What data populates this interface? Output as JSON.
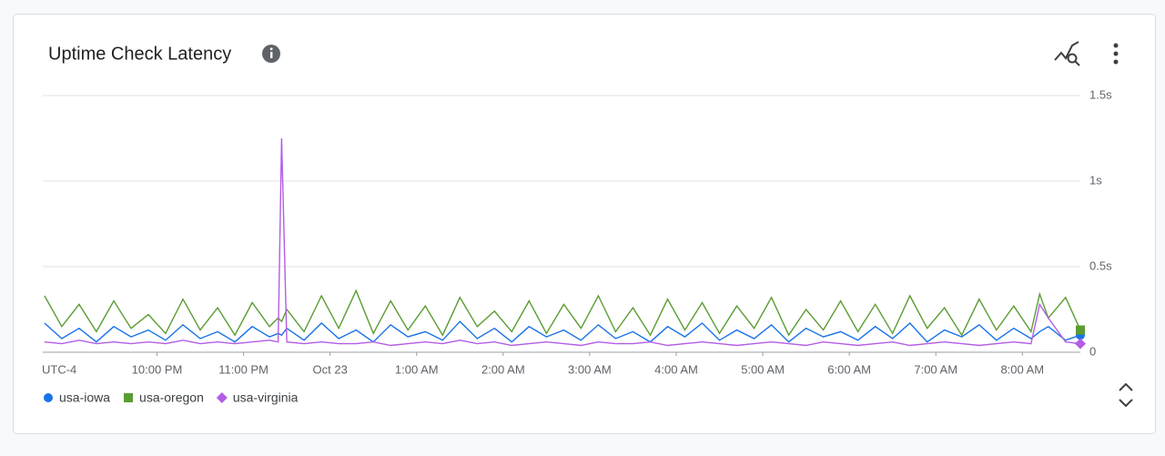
{
  "chart_data": {
    "type": "line",
    "title": "Uptime Check Latency",
    "timezone": "UTC-4",
    "x": [
      20.7,
      20.9,
      21.1,
      21.3,
      21.5,
      21.7,
      21.9,
      22.1,
      22.3,
      22.5,
      22.7,
      22.9,
      23.1,
      23.3,
      23.4,
      23.44,
      23.5,
      23.7,
      23.9,
      24.1,
      24.3,
      24.5,
      24.7,
      24.9,
      25.1,
      25.3,
      25.5,
      25.7,
      25.9,
      26.1,
      26.3,
      26.5,
      26.7,
      26.9,
      27.1,
      27.3,
      27.5,
      27.7,
      27.9,
      28.1,
      28.3,
      28.5,
      28.7,
      28.9,
      29.1,
      29.3,
      29.5,
      29.7,
      29.9,
      30.1,
      30.3,
      30.5,
      30.7,
      30.9,
      31.1,
      31.3,
      31.5,
      31.7,
      31.9,
      32.1,
      32.2,
      32.3,
      32.5,
      32.67
    ],
    "series": [
      {
        "name": "usa-iowa",
        "color": "#1a73e8",
        "marker": "circle",
        "values": [
          0.17,
          0.08,
          0.14,
          0.06,
          0.15,
          0.09,
          0.13,
          0.07,
          0.16,
          0.08,
          0.12,
          0.06,
          0.15,
          0.09,
          0.11,
          0.1,
          0.14,
          0.07,
          0.17,
          0.08,
          0.13,
          0.06,
          0.16,
          0.09,
          0.12,
          0.07,
          0.18,
          0.08,
          0.14,
          0.06,
          0.15,
          0.09,
          0.13,
          0.07,
          0.16,
          0.08,
          0.12,
          0.06,
          0.15,
          0.09,
          0.17,
          0.07,
          0.13,
          0.08,
          0.16,
          0.06,
          0.14,
          0.09,
          0.12,
          0.07,
          0.15,
          0.08,
          0.17,
          0.06,
          0.13,
          0.09,
          0.16,
          0.07,
          0.14,
          0.08,
          0.12,
          0.15,
          0.07,
          0.1
        ]
      },
      {
        "name": "usa-oregon",
        "color": "#5b9c32",
        "marker": "square",
        "values": [
          0.33,
          0.15,
          0.28,
          0.12,
          0.3,
          0.14,
          0.22,
          0.11,
          0.31,
          0.13,
          0.26,
          0.1,
          0.29,
          0.15,
          0.2,
          0.18,
          0.25,
          0.12,
          0.33,
          0.14,
          0.36,
          0.11,
          0.3,
          0.13,
          0.27,
          0.1,
          0.32,
          0.15,
          0.24,
          0.12,
          0.3,
          0.11,
          0.28,
          0.14,
          0.33,
          0.12,
          0.26,
          0.1,
          0.31,
          0.13,
          0.29,
          0.11,
          0.27,
          0.14,
          0.32,
          0.1,
          0.25,
          0.13,
          0.3,
          0.12,
          0.28,
          0.11,
          0.33,
          0.14,
          0.26,
          0.1,
          0.31,
          0.13,
          0.27,
          0.12,
          0.34,
          0.2,
          0.32,
          0.13
        ]
      },
      {
        "name": "usa-virginia",
        "color": "#b35de6",
        "marker": "diamond",
        "values": [
          0.06,
          0.05,
          0.07,
          0.05,
          0.06,
          0.05,
          0.06,
          0.05,
          0.07,
          0.05,
          0.06,
          0.05,
          0.06,
          0.07,
          0.06,
          1.25,
          0.06,
          0.05,
          0.06,
          0.05,
          0.05,
          0.06,
          0.04,
          0.05,
          0.06,
          0.05,
          0.07,
          0.05,
          0.06,
          0.04,
          0.05,
          0.06,
          0.05,
          0.04,
          0.06,
          0.05,
          0.05,
          0.06,
          0.04,
          0.05,
          0.06,
          0.05,
          0.04,
          0.05,
          0.06,
          0.05,
          0.04,
          0.06,
          0.05,
          0.04,
          0.05,
          0.06,
          0.04,
          0.05,
          0.06,
          0.05,
          0.04,
          0.05,
          0.06,
          0.05,
          0.28,
          0.2,
          0.06,
          0.05
        ]
      }
    ],
    "xlim": [
      20.68,
      32.67
    ],
    "xticks": [
      {
        "value": 22,
        "label": "10:00 PM"
      },
      {
        "value": 23,
        "label": "11:00 PM"
      },
      {
        "value": 24,
        "label": "Oct 23"
      },
      {
        "value": 25,
        "label": "1:00 AM"
      },
      {
        "value": 26,
        "label": "2:00 AM"
      },
      {
        "value": 27,
        "label": "3:00 AM"
      },
      {
        "value": 28,
        "label": "4:00 AM"
      },
      {
        "value": 29,
        "label": "5:00 AM"
      },
      {
        "value": 30,
        "label": "6:00 AM"
      },
      {
        "value": 31,
        "label": "7:00 AM"
      },
      {
        "value": 32,
        "label": "8:00 AM"
      }
    ],
    "ylim": [
      0,
      1.5
    ],
    "yticks": [
      0,
      {
        "value": 0.5,
        "label": "0.5s"
      },
      {
        "value": 1,
        "label": "1s"
      },
      {
        "value": 1.5,
        "label": "1.5s"
      }
    ],
    "grid": true
  }
}
